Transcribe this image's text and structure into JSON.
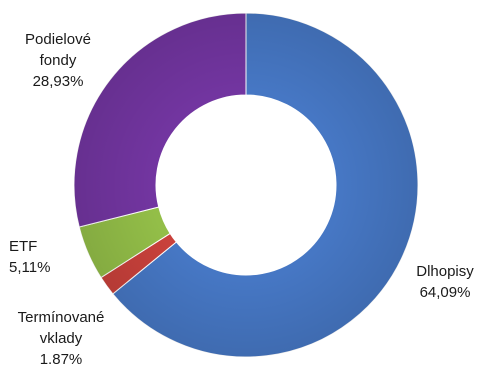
{
  "chart_data": {
    "type": "pie",
    "donut": true,
    "title": "",
    "categories": [
      "Dlhopisy",
      "Termínované vklady",
      "ETF",
      "Podielové fondy"
    ],
    "values": [
      64.09,
      1.87,
      5.11,
      28.93
    ],
    "unit": "%",
    "start_angle_deg": 0,
    "direction": "clockwise",
    "colors": [
      "#4677C4",
      "#C9413B",
      "#93BE48",
      "#7235A0"
    ],
    "labels": [
      {
        "lines": [
          "Dlhopisy",
          "64,09%"
        ],
        "anchor": "middle",
        "placement": "outside-right"
      },
      {
        "lines": [
          "Termínované",
          "vklady",
          "1.87%"
        ],
        "anchor": "middle",
        "placement": "outside-bottom-left"
      },
      {
        "lines": [
          "ETF",
          "5,11%"
        ],
        "anchor": "start",
        "placement": "outside-left"
      },
      {
        "lines": [
          "Podielové",
          "fondy",
          "28,93%"
        ],
        "anchor": "middle",
        "placement": "outside-top-left"
      }
    ],
    "legend": "none"
  }
}
